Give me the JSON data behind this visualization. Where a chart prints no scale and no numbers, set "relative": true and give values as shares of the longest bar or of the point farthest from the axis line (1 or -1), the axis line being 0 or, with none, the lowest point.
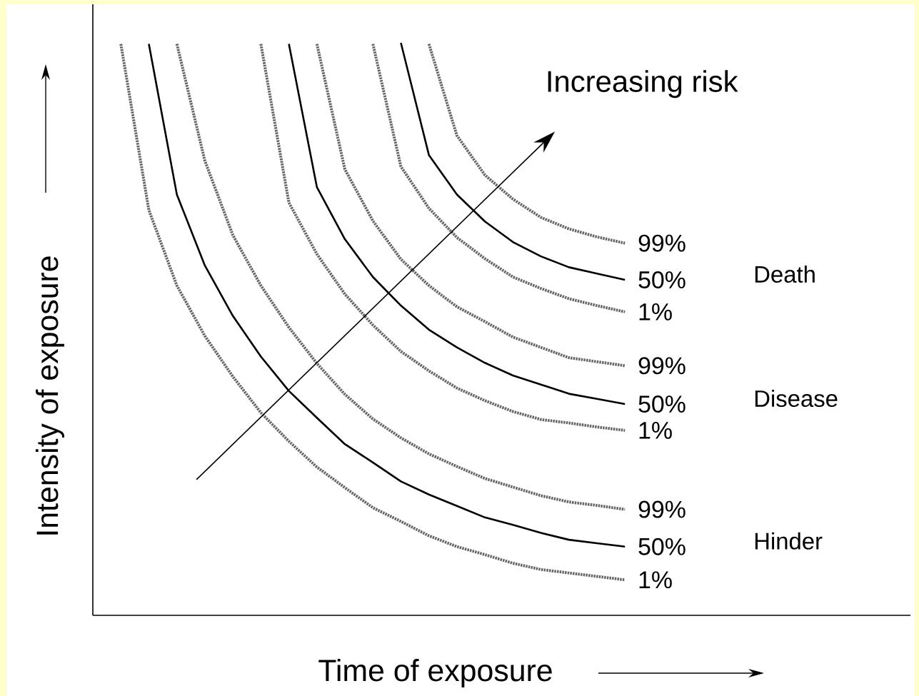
{
  "chart_data": {
    "type": "line",
    "relative": true,
    "xlabel": "Time of exposure",
    "ylabel": "Intensity of exposure",
    "annotations": [
      "Death",
      "Disease",
      "Hinder",
      "Increasing risk"
    ],
    "categories": [
      null,
      null,
      null,
      null,
      null,
      null,
      null,
      null,
      null,
      null,
      null,
      null,
      null,
      null,
      null,
      null,
      null,
      null,
      null,
      null
    ],
    "series": [
      {
        "name": "99%",
        "color": "#666666",
        "line_style": "dotted",
        "values": [
          null,
          null,
          null,
          null,
          null,
          null,
          null,
          null,
          null,
          null,
          null,
          null,
          0.998,
          0.838,
          0.769,
          0.727,
          0.695,
          0.675,
          0.661,
          0.65
        ]
      },
      {
        "name": "50%",
        "color": "#000000",
        "line_style": "solid",
        "values": [
          null,
          null,
          null,
          null,
          null,
          null,
          null,
          null,
          null,
          null,
          null,
          1.0,
          0.804,
          0.735,
          0.688,
          0.652,
          0.627,
          0.608,
          0.597,
          0.586
        ]
      },
      {
        "name": "1%",
        "color": "#666666",
        "line_style": "dotted",
        "values": [
          null,
          null,
          null,
          null,
          null,
          null,
          null,
          null,
          null,
          null,
          0.998,
          0.784,
          0.711,
          0.66,
          0.623,
          0.591,
          0.571,
          0.553,
          0.541,
          0.53
        ]
      },
      {
        "name": "99%",
        "color": "#666666",
        "line_style": "dotted",
        "values": [
          null,
          null,
          null,
          null,
          null,
          null,
          null,
          null,
          0.998,
          0.779,
          0.689,
          0.622,
          0.576,
          0.539,
          0.513,
          0.486,
          0.468,
          0.45,
          0.443,
          0.436
        ]
      },
      {
        "name": "50%",
        "color": "#000000",
        "line_style": "solid",
        "values": [
          null,
          null,
          null,
          null,
          null,
          null,
          null,
          0.998,
          0.748,
          0.657,
          0.591,
          0.541,
          0.499,
          0.468,
          0.441,
          0.419,
          0.403,
          0.387,
          0.378,
          0.369
        ]
      },
      {
        "name": "1%",
        "color": "#666666",
        "line_style": "dotted",
        "values": [
          null,
          null,
          null,
          null,
          null,
          null,
          0.998,
          0.721,
          0.631,
          0.561,
          0.507,
          0.461,
          0.427,
          0.397,
          0.375,
          0.356,
          0.342,
          0.336,
          0.329,
          0.323
        ]
      },
      {
        "name": "99%",
        "color": "#666666",
        "line_style": "dotted",
        "values": [
          null,
          null,
          null,
          0.998,
          0.794,
          0.664,
          0.576,
          0.503,
          0.44,
          0.386,
          0.343,
          0.31,
          0.282,
          0.26,
          0.239,
          0.224,
          0.209,
          0.198,
          0.192,
          0.185
        ]
      },
      {
        "name": "50%",
        "color": "#000000",
        "line_style": "solid",
        "values": [
          null,
          null,
          0.998,
          0.735,
          0.611,
          0.523,
          0.452,
          0.392,
          0.345,
          0.299,
          0.267,
          0.234,
          0.211,
          0.191,
          0.171,
          0.158,
          0.144,
          0.132,
          0.126,
          0.12
        ]
      },
      {
        "name": "1%",
        "color": "#666666",
        "line_style": "dotted",
        "values": [
          null,
          0.998,
          0.708,
          0.576,
          0.488,
          0.417,
          0.354,
          0.304,
          0.259,
          0.223,
          0.188,
          0.164,
          0.139,
          0.12,
          0.106,
          0.091,
          0.08,
          0.074,
          0.068,
          0.062
        ]
      }
    ]
  }
}
